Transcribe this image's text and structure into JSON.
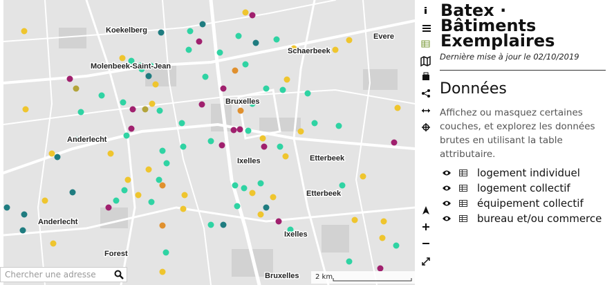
{
  "map": {
    "labels": [
      "Koekelberg",
      "Evere",
      "Schaerbeek",
      "Molenbeek-Saint-Jean",
      "Bruxelles",
      "Anderlecht",
      "Ixelles",
      "Etterbeek",
      "Etterbeek",
      "Anderlecht",
      "Ixelles",
      "Forest",
      "Bruxelles"
    ],
    "search_placeholder": "Chercher une adresse",
    "scale": "2 km"
  },
  "panel": {
    "title": "Batex · Bâtiments Exemplaires",
    "updated": "Dernière mise à jour le 02/10/2019",
    "heading": "Données",
    "description": "Affichez ou masquez certaines couches, et explorez les données brutes en utilisant la table attributaire.",
    "layers": [
      "logement individuel",
      "logement collectif",
      "équipement collectif",
      "bureau et/ou commerce"
    ]
  }
}
